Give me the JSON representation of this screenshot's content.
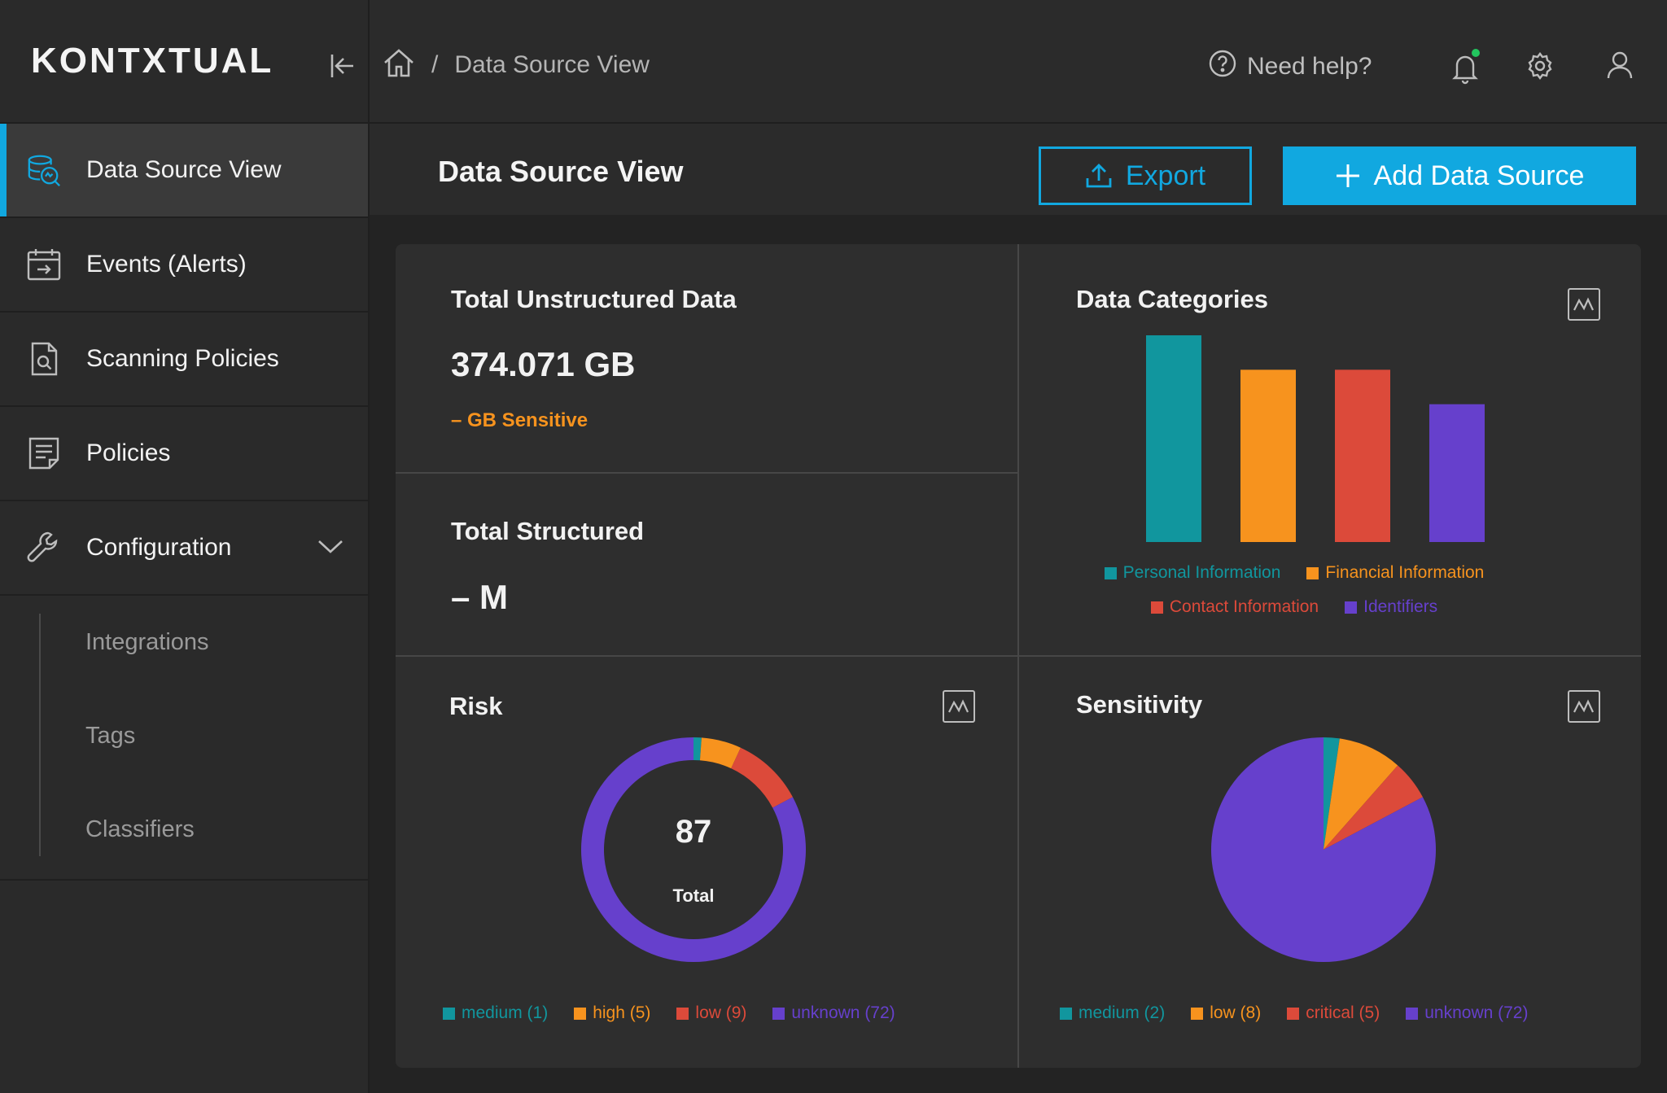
{
  "app": {
    "logo": "KONTXTUAL"
  },
  "colors": {
    "accent": "#11a8e0",
    "teal": "#11969e",
    "orange": "#f7931e",
    "red": "#dc4a3a",
    "purple": "#6640cc"
  },
  "sidebar": {
    "items": [
      {
        "label": "Data Source View",
        "icon": "data-source-icon"
      },
      {
        "label": "Events (Alerts)",
        "icon": "calendar-icon"
      },
      {
        "label": "Scanning Policies",
        "icon": "document-search-icon"
      },
      {
        "label": "Policies",
        "icon": "document-icon"
      },
      {
        "label": "Configuration",
        "icon": "wrench-icon"
      }
    ],
    "sub_items": [
      {
        "label": "Integrations"
      },
      {
        "label": "Tags"
      },
      {
        "label": "Classifiers"
      }
    ]
  },
  "topbar": {
    "breadcrumb_sep": "/",
    "breadcrumb_page": "Data Source View",
    "help": "Need help?"
  },
  "page": {
    "title": "Data Source View",
    "export_label": "Export",
    "add_label": "Add Data Source"
  },
  "summary": {
    "unstructured_label": "Total Unstructured Data",
    "unstructured_value": "374.071 GB",
    "sensitive": "– GB Sensitive",
    "structured_label": "Total Structured",
    "structured_value": "– M"
  },
  "categories": {
    "title": "Data Categories"
  },
  "risk": {
    "title": "Risk",
    "total": "87",
    "total_label": "Total"
  },
  "sensitivity": {
    "title": "Sensitivity"
  },
  "chart_data": [
    {
      "type": "bar",
      "title": "Data Categories",
      "categories": [
        "Personal Information",
        "Financial Information",
        "Contact Information",
        "Identifiers"
      ],
      "values": [
        6,
        5,
        5,
        4
      ],
      "colors": [
        "#11969e",
        "#f7931e",
        "#dc4a3a",
        "#6640cc"
      ],
      "ylim": [
        0,
        6
      ],
      "grid": false,
      "legend": "bottom"
    },
    {
      "type": "pie",
      "variant": "donut",
      "title": "Risk",
      "categories": [
        "medium (1)",
        "high (5)",
        "low (9)",
        "unknown (72)"
      ],
      "values": [
        1,
        5,
        9,
        72
      ],
      "colors": [
        "#11969e",
        "#f7931e",
        "#dc4a3a",
        "#6640cc"
      ],
      "legend": "bottom"
    },
    {
      "type": "pie",
      "title": "Sensitivity",
      "categories": [
        "medium (2)",
        "low (8)",
        "critical (5)",
        "unknown (72)"
      ],
      "values": [
        2,
        8,
        5,
        72
      ],
      "colors": [
        "#11969e",
        "#f7931e",
        "#dc4a3a",
        "#6640cc"
      ],
      "legend": "bottom"
    }
  ]
}
